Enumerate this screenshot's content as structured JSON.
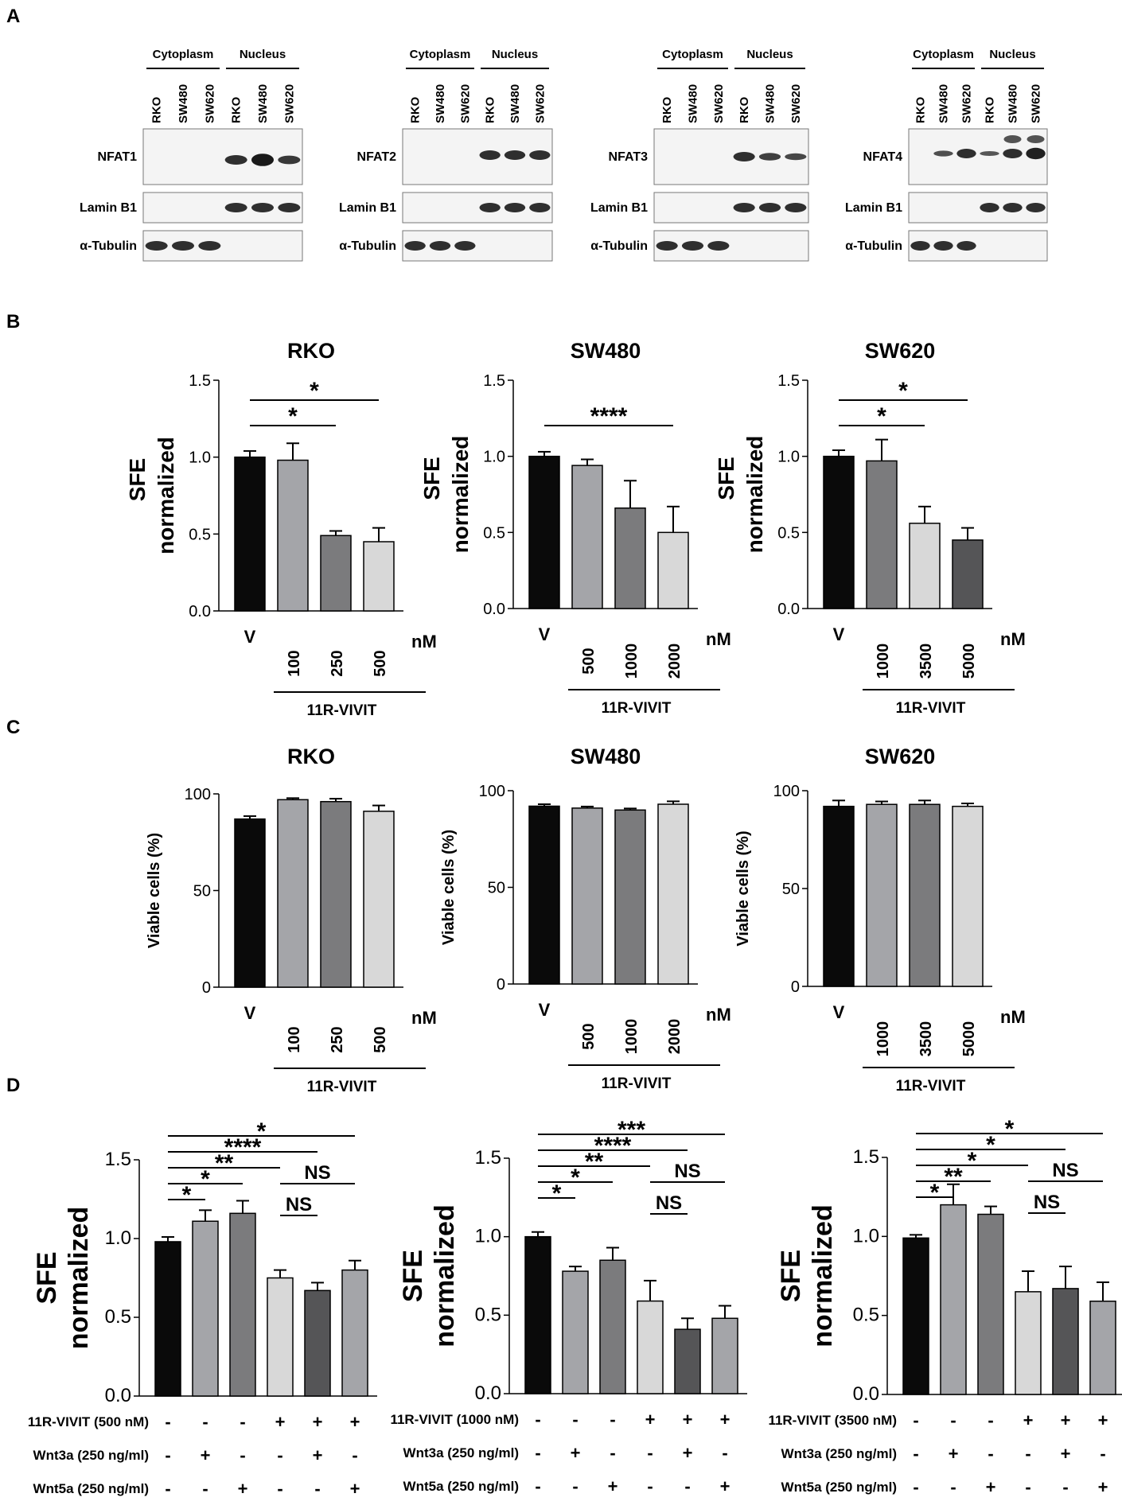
{
  "panel_labels": [
    "A",
    "B",
    "C",
    "D"
  ],
  "blots": {
    "groups": [
      "Cytoplasm",
      "Nucleus"
    ],
    "cell_lines": [
      "RKO",
      "SW480",
      "SW620"
    ],
    "rows": [
      "Lamin B1",
      "α-Tubulin"
    ],
    "blot_panels": [
      {
        "target": "NFAT1"
      },
      {
        "target": "NFAT2"
      },
      {
        "target": "NFAT3"
      },
      {
        "target": "NFAT4"
      }
    ]
  },
  "treatment_label": "11R-VIVIT",
  "unit_label": "nM",
  "chart_data": [
    {
      "panel": "B",
      "type": "bar",
      "title": "RKO",
      "ylabel": [
        "normalized",
        "SFE"
      ],
      "ylim": [
        0,
        1.5
      ],
      "yticks": [
        "0.0",
        "0.5",
        "1.0",
        "1.5"
      ],
      "categories": [
        "V",
        "100",
        "250",
        "500"
      ],
      "values": [
        1.0,
        0.98,
        0.49,
        0.45
      ],
      "errors": [
        0.04,
        0.11,
        0.03,
        0.09
      ],
      "colors": [
        "#0a0a0a",
        "#a4a5a9",
        "#7b7b7d",
        "#d8d8d8"
      ],
      "significance": [
        {
          "from": 0,
          "to": 2,
          "label": "*"
        },
        {
          "from": 0,
          "to": 3,
          "label": "*"
        }
      ]
    },
    {
      "panel": "B",
      "type": "bar",
      "title": "SW480",
      "ylabel": [
        "normalized",
        "SFE"
      ],
      "ylim": [
        0,
        1.5
      ],
      "yticks": [
        "0.0",
        "0.5",
        "1.0",
        "1.5"
      ],
      "categories": [
        "V",
        "500",
        "1000",
        "2000"
      ],
      "values": [
        1.0,
        0.94,
        0.66,
        0.5
      ],
      "errors": [
        0.03,
        0.04,
        0.18,
        0.17
      ],
      "colors": [
        "#0a0a0a",
        "#a4a5a9",
        "#7b7b7d",
        "#d8d8d8"
      ],
      "significance": [
        {
          "from": 0,
          "to": 3,
          "label": "****"
        }
      ]
    },
    {
      "panel": "B",
      "type": "bar",
      "title": "SW620",
      "ylabel": [
        "normalized",
        "SFE"
      ],
      "ylim": [
        0,
        1.5
      ],
      "yticks": [
        "0.0",
        "0.5",
        "1.0",
        "1.5"
      ],
      "categories": [
        "V",
        "1000",
        "3500",
        "5000"
      ],
      "values": [
        1.0,
        0.97,
        0.56,
        0.45
      ],
      "errors": [
        0.04,
        0.14,
        0.11,
        0.08
      ],
      "colors": [
        "#0a0a0a",
        "#7b7b7d",
        "#d8d8d8",
        "#555557"
      ],
      "significance": [
        {
          "from": 0,
          "to": 2,
          "label": "*"
        },
        {
          "from": 0,
          "to": 3,
          "label": "*"
        }
      ]
    },
    {
      "panel": "C",
      "type": "bar",
      "title": "RKO",
      "ylabel": [
        "Viable cells (%)"
      ],
      "ylim": [
        0,
        100
      ],
      "yticks": [
        "0",
        "50",
        "100"
      ],
      "categories": [
        "V",
        "100",
        "250",
        "500"
      ],
      "values": [
        87,
        97,
        96,
        91
      ],
      "errors": [
        1.5,
        0.8,
        1.5,
        3
      ],
      "colors": [
        "#0a0a0a",
        "#a4a5a9",
        "#7b7b7d",
        "#d8d8d8"
      ],
      "significance": []
    },
    {
      "panel": "C",
      "type": "bar",
      "title": "SW480",
      "ylabel": [
        "Viable cells (%)"
      ],
      "ylim": [
        0,
        100
      ],
      "yticks": [
        "0",
        "50",
        "100"
      ],
      "categories": [
        "V",
        "500",
        "1000",
        "2000"
      ],
      "values": [
        92,
        91,
        90,
        93
      ],
      "errors": [
        1,
        0.8,
        0.8,
        1.5
      ],
      "colors": [
        "#0a0a0a",
        "#a4a5a9",
        "#7b7b7d",
        "#d8d8d8"
      ],
      "significance": []
    },
    {
      "panel": "C",
      "type": "bar",
      "title": "SW620",
      "ylabel": [
        "Viable cells (%)"
      ],
      "ylim": [
        0,
        100
      ],
      "yticks": [
        "0",
        "50",
        "100"
      ],
      "categories": [
        "V",
        "1000",
        "3500",
        "5000"
      ],
      "values": [
        92,
        93,
        93,
        92
      ],
      "errors": [
        3,
        1.5,
        2,
        1.5
      ],
      "colors": [
        "#0a0a0a",
        "#a4a5a9",
        "#7b7b7d",
        "#d8d8d8"
      ],
      "significance": []
    },
    {
      "panel": "D",
      "type": "bar",
      "title": "",
      "ylabel": [
        "normalized",
        "SFE"
      ],
      "ylim": [
        0,
        1.5
      ],
      "yticks": [
        "0.0",
        "0.5",
        "1.0",
        "1.5"
      ],
      "values": [
        0.98,
        1.11,
        1.16,
        0.75,
        0.67,
        0.8
      ],
      "errors": [
        0.03,
        0.07,
        0.08,
        0.05,
        0.05,
        0.06
      ],
      "colors": [
        "#0a0a0a",
        "#a4a5a9",
        "#7b7b7d",
        "#d8d8d8",
        "#555557",
        "#a4a5a9"
      ],
      "treatments": [
        {
          "label": "11R-VIVIT (500 nM)",
          "signs": [
            "-",
            "-",
            "-",
            "+",
            "+",
            "+"
          ]
        },
        {
          "label": "Wnt3a (250 ng/ml)",
          "signs": [
            "-",
            "+",
            "-",
            "-",
            "+",
            "-"
          ]
        },
        {
          "label": "Wnt5a (250 ng/ml)",
          "signs": [
            "-",
            "-",
            "+",
            "-",
            "-",
            "+"
          ]
        }
      ],
      "significance": [
        {
          "from": 0,
          "to": 5,
          "label": "*",
          "level": 0
        },
        {
          "from": 0,
          "to": 4,
          "label": "****",
          "level": 1
        },
        {
          "from": 0,
          "to": 3,
          "label": "**",
          "level": 2
        },
        {
          "from": 0,
          "to": 2,
          "label": "*",
          "level": 3
        },
        {
          "from": 0,
          "to": 1,
          "label": "*",
          "level": 4
        },
        {
          "from": 3,
          "to": 5,
          "label": "NS",
          "level": 3
        },
        {
          "from": 3,
          "to": 4,
          "label": "NS",
          "level": 5
        }
      ]
    },
    {
      "panel": "D",
      "type": "bar",
      "title": "",
      "ylabel": [
        "normalized",
        "SFE"
      ],
      "ylim": [
        0,
        1.5
      ],
      "yticks": [
        "0.0",
        "0.5",
        "1.0",
        "1.5"
      ],
      "values": [
        1.0,
        0.78,
        0.85,
        0.59,
        0.41,
        0.48
      ],
      "errors": [
        0.03,
        0.03,
        0.08,
        0.13,
        0.07,
        0.08
      ],
      "colors": [
        "#0a0a0a",
        "#a4a5a9",
        "#7b7b7d",
        "#d8d8d8",
        "#555557",
        "#a4a5a9"
      ],
      "treatments": [
        {
          "label": "11R-VIVIT (1000 nM)",
          "signs": [
            "-",
            "-",
            "-",
            "+",
            "+",
            "+"
          ]
        },
        {
          "label": "Wnt3a (250 ng/ml)",
          "signs": [
            "-",
            "+",
            "-",
            "-",
            "+",
            "-"
          ]
        },
        {
          "label": "Wnt5a (250 ng/ml)",
          "signs": [
            "-",
            "-",
            "+",
            "-",
            "-",
            "+"
          ]
        }
      ],
      "significance": [
        {
          "from": 0,
          "to": 5,
          "label": "***",
          "level": 0
        },
        {
          "from": 0,
          "to": 4,
          "label": "****",
          "level": 1
        },
        {
          "from": 0,
          "to": 3,
          "label": "**",
          "level": 2
        },
        {
          "from": 0,
          "to": 2,
          "label": "*",
          "level": 3
        },
        {
          "from": 0,
          "to": 1,
          "label": "*",
          "level": 4
        },
        {
          "from": 3,
          "to": 5,
          "label": "NS",
          "level": 3
        },
        {
          "from": 3,
          "to": 4,
          "label": "NS",
          "level": 5
        }
      ]
    },
    {
      "panel": "D",
      "type": "bar",
      "title": "",
      "ylabel": [
        "normalized",
        "SFE"
      ],
      "ylim": [
        0,
        1.5
      ],
      "yticks": [
        "0.0",
        "0.5",
        "1.0",
        "1.5"
      ],
      "values": [
        0.99,
        1.2,
        1.14,
        0.65,
        0.67,
        0.59
      ],
      "errors": [
        0.02,
        0.13,
        0.05,
        0.13,
        0.14,
        0.12
      ],
      "colors": [
        "#0a0a0a",
        "#a4a5a9",
        "#7b7b7d",
        "#d8d8d8",
        "#555557",
        "#a4a5a9"
      ],
      "treatments": [
        {
          "label": "11R-VIVIT (3500 nM)",
          "signs": [
            "-",
            "-",
            "-",
            "+",
            "+",
            "+"
          ]
        },
        {
          "label": "Wnt3a (250 ng/ml)",
          "signs": [
            "-",
            "+",
            "-",
            "-",
            "+",
            "-"
          ]
        },
        {
          "label": "Wnt5a (250 ng/ml)",
          "signs": [
            "-",
            "-",
            "+",
            "-",
            "-",
            "+"
          ]
        }
      ],
      "significance": [
        {
          "from": 0,
          "to": 5,
          "label": "*",
          "level": 0
        },
        {
          "from": 0,
          "to": 4,
          "label": "*",
          "level": 1
        },
        {
          "from": 0,
          "to": 3,
          "label": "*",
          "level": 2
        },
        {
          "from": 0,
          "to": 2,
          "label": "**",
          "level": 3
        },
        {
          "from": 0,
          "to": 1,
          "label": "*",
          "level": 4
        },
        {
          "from": 3,
          "to": 5,
          "label": "NS",
          "level": 3
        },
        {
          "from": 3,
          "to": 4,
          "label": "NS",
          "level": 5
        }
      ]
    }
  ]
}
